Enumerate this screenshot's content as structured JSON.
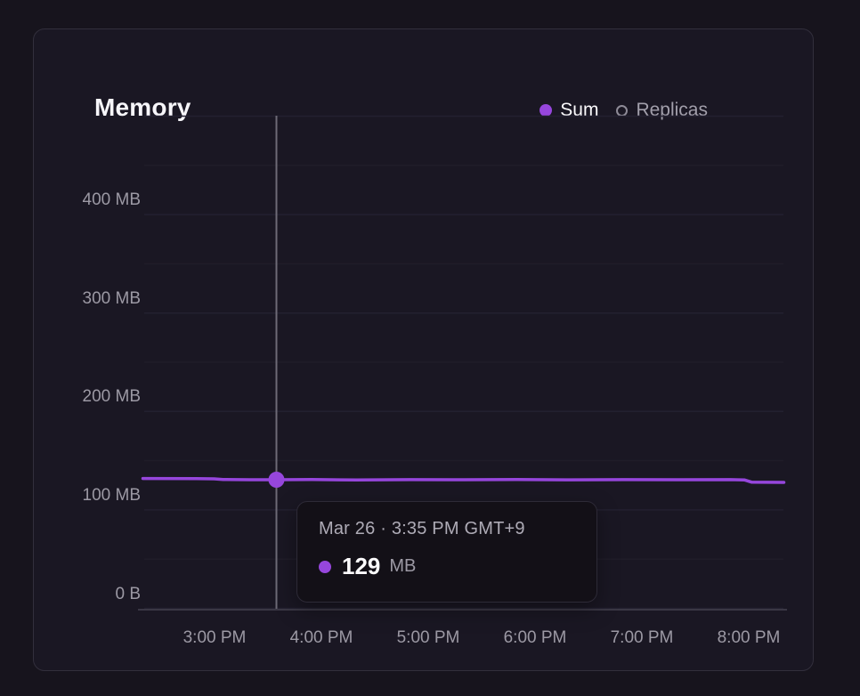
{
  "card": {
    "title": "Memory"
  },
  "legend": {
    "items": [
      {
        "label": "Sum",
        "marker": "filled-dot"
      },
      {
        "label": "Replicas",
        "marker": "hollow-circle"
      }
    ]
  },
  "tooltip": {
    "header": "Mar 26 · 3:35 PM GMT+9",
    "value": "129",
    "unit": "MB"
  },
  "colors": {
    "accent_purple": "#9646dc",
    "crosshair_gray": "#6d6a76",
    "axis_label_gray": "#9c99a4",
    "card_background": "#1a1723",
    "page_background": "#17141d"
  },
  "chart_data": {
    "type": "line",
    "title": "Memory",
    "unit": "MB",
    "ylim_mb": [
      0,
      500
    ],
    "grid": "horizontal gridlines every 50 MB, vertical grid off",
    "legend_position": "top-right",
    "y_ticks": [
      "0 B",
      "100 MB",
      "200 MB",
      "300 MB",
      "400 MB"
    ],
    "x_ticks": [
      "3:00 PM",
      "4:00 PM",
      "5:00 PM",
      "6:00 PM",
      "7:00 PM",
      "8:00 PM"
    ],
    "series": [
      {
        "name": "Sum",
        "color": "#9646dc",
        "points_min_mb": [
          [
            -40,
            130.6
          ],
          [
            -10,
            130.4
          ],
          [
            0,
            130.2
          ],
          [
            5,
            129.6
          ],
          [
            20,
            129.3
          ],
          [
            35,
            129.3
          ],
          [
            55,
            129.6
          ],
          [
            80,
            129.0
          ],
          [
            110,
            129.4
          ],
          [
            140,
            129.3
          ],
          [
            170,
            129.5
          ],
          [
            200,
            129.2
          ],
          [
            230,
            129.4
          ],
          [
            260,
            129.3
          ],
          [
            290,
            129.4
          ],
          [
            298,
            129.0
          ],
          [
            302,
            126.8
          ],
          [
            320,
            126.6
          ]
        ],
        "x_unit": "minutes after 3:00 PM"
      },
      {
        "name": "Replicas",
        "visible": false
      }
    ],
    "hover_point": {
      "label": "Mar 26 · 3:35 PM GMT+9",
      "minutes_after_3pm": 35,
      "value_mb": 129
    }
  }
}
